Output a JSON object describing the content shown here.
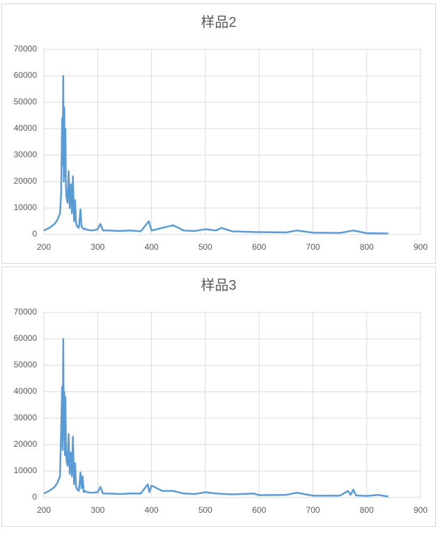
{
  "chart_data": [
    {
      "type": "line",
      "title": "样品2",
      "grid": true,
      "xlim": [
        200,
        900
      ],
      "xticks": [
        200,
        300,
        400,
        500,
        600,
        700,
        800,
        900
      ],
      "ylim": [
        0,
        70000
      ],
      "yticks": [
        0,
        10000,
        20000,
        30000,
        40000,
        50000,
        60000,
        70000
      ],
      "x": [
        200,
        210,
        220,
        225,
        230,
        232,
        234,
        235,
        236,
        237,
        238,
        239,
        240,
        241,
        242,
        244,
        246,
        248,
        250,
        252,
        254,
        256,
        258,
        260,
        262,
        265,
        268,
        270,
        272,
        274,
        276,
        280,
        290,
        300,
        305,
        310,
        320,
        340,
        360,
        380,
        395,
        400,
        420,
        440,
        460,
        480,
        500,
        520,
        530,
        550,
        600,
        650,
        670,
        700,
        750,
        775,
        800,
        840
      ],
      "series": [
        {
          "name": "样品2",
          "color": "#5b9bd5",
          "values": [
            1500,
            2500,
            4000,
            5500,
            8000,
            15000,
            44000,
            26000,
            60000,
            20000,
            48000,
            22000,
            40000,
            18000,
            14000,
            12000,
            24000,
            10000,
            19000,
            8000,
            22000,
            5000,
            13000,
            4000,
            3000,
            2500,
            9500,
            3000,
            2500,
            2000,
            2200,
            1800,
            1500,
            2000,
            4000,
            1500,
            1500,
            1300,
            1500,
            1200,
            5000,
            1500,
            2500,
            3500,
            1500,
            1300,
            2000,
            1500,
            2500,
            1200,
            900,
            800,
            1500,
            700,
            600,
            1500,
            500,
            400
          ]
        }
      ]
    },
    {
      "type": "line",
      "title": "样品3",
      "grid": true,
      "xlim": [
        200,
        900
      ],
      "xticks": [
        200,
        300,
        400,
        500,
        600,
        700,
        800,
        900
      ],
      "ylim": [
        0,
        70000
      ],
      "yticks": [
        0,
        10000,
        20000,
        30000,
        40000,
        50000,
        60000,
        70000
      ],
      "x": [
        200,
        210,
        220,
        225,
        230,
        232,
        234,
        235,
        236,
        237,
        238,
        239,
        240,
        241,
        242,
        244,
        246,
        248,
        250,
        252,
        254,
        256,
        258,
        260,
        262,
        265,
        268,
        270,
        272,
        274,
        276,
        280,
        290,
        300,
        305,
        310,
        320,
        340,
        360,
        380,
        393,
        396,
        400,
        420,
        440,
        460,
        480,
        500,
        520,
        550,
        590,
        600,
        650,
        670,
        700,
        750,
        765,
        770,
        775,
        780,
        800,
        820,
        840
      ],
      "series": [
        {
          "name": "样品3",
          "color": "#5b9bd5",
          "values": [
            1500,
            2500,
            4000,
            5500,
            8000,
            25000,
            42000,
            18000,
            60000,
            22000,
            40000,
            16000,
            38000,
            20000,
            14000,
            12000,
            24000,
            9000,
            17000,
            8000,
            23000,
            5000,
            13000,
            4000,
            3000,
            2500,
            9500,
            3500,
            8000,
            2000,
            2500,
            2000,
            1800,
            2000,
            4000,
            1500,
            1500,
            1300,
            1500,
            1500,
            5000,
            2000,
            4500,
            2500,
            2500,
            1500,
            1300,
            2000,
            1500,
            1200,
            1500,
            900,
            1000,
            1800,
            700,
            700,
            2500,
            1000,
            3000,
            800,
            600,
            1000,
            400
          ]
        }
      ]
    }
  ]
}
